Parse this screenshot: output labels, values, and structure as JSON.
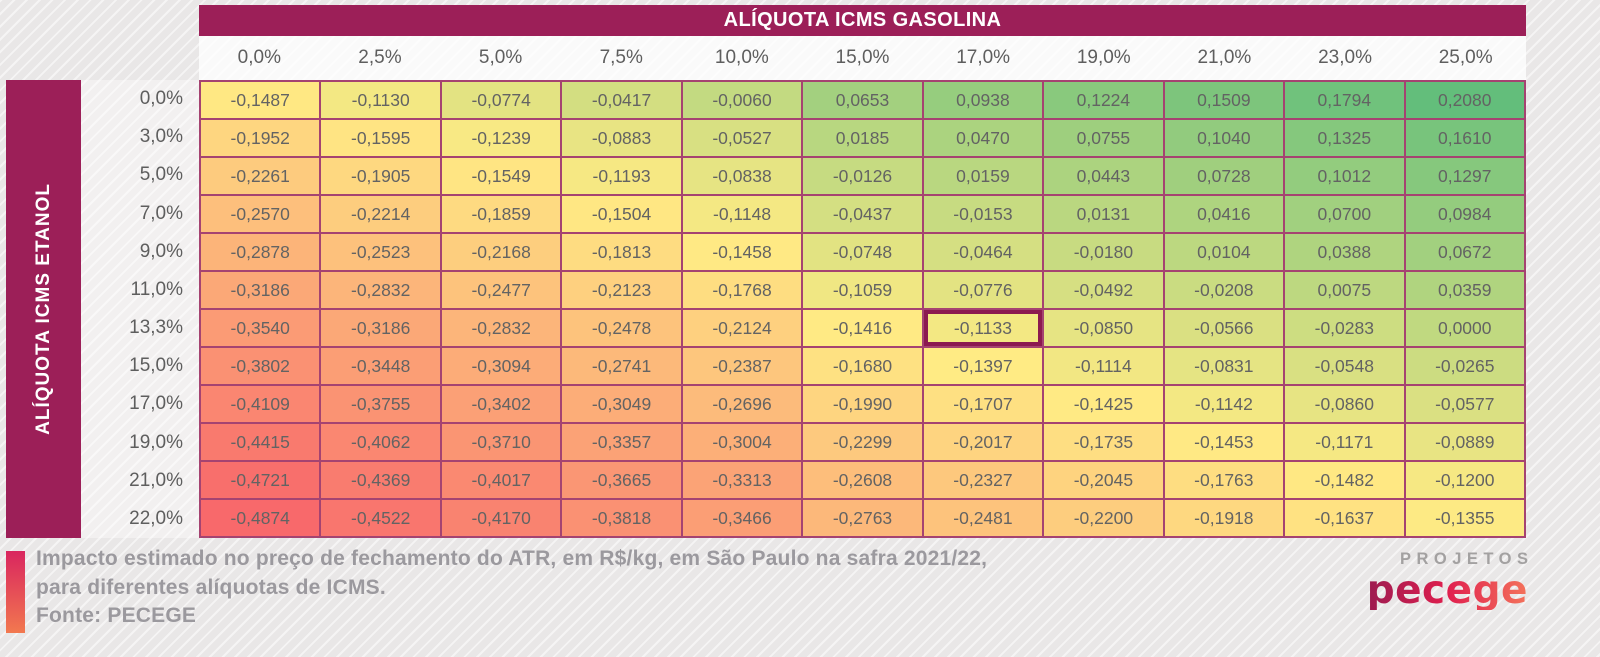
{
  "colors": {
    "page_bg": "#e9e7e7",
    "brand_magenta": "#9c1f58",
    "grid_border": "#a54371",
    "highlight_border": "#8c1a50",
    "cell_text": "#636363",
    "label_text": "#5e5e5e",
    "caption_text": "#9b999e",
    "logo_top_color": "#a3a1a1",
    "accent_bar_top": "#d9255f",
    "accent_bar_bottom": "#f2784f",
    "logo_grad_start": "#9c1b50",
    "logo_grad_mid": "#e01f4e",
    "logo_grad_end": "#f4735b"
  },
  "chart_data": {
    "type": "heatmap",
    "col_axis_title": "ALÍQUOTA ICMS GASOLINA",
    "row_axis_title": "ALÍQUOTA ICMS ETANOL",
    "col_labels": [
      "0,0%",
      "2,5%",
      "5,0%",
      "7,5%",
      "10,0%",
      "15,0%",
      "17,0%",
      "19,0%",
      "21,0%",
      "23,0%",
      "25,0%"
    ],
    "row_labels": [
      "0,0%",
      "3,0%",
      "5,0%",
      "7,0%",
      "9,0%",
      "11,0%",
      "13,3%",
      "15,0%",
      "17,0%",
      "19,0%",
      "21,0%",
      "22,0%"
    ],
    "values_display": [
      [
        "-0,1487",
        "-0,1130",
        "-0,0774",
        "-0,0417",
        "-0,0060",
        "0,0653",
        "0,0938",
        "0,1224",
        "0,1509",
        "0,1794",
        "0,2080"
      ],
      [
        "-0,1952",
        "-0,1595",
        "-0,1239",
        "-0,0883",
        "-0,0527",
        "0,0185",
        "0,0470",
        "0,0755",
        "0,1040",
        "0,1325",
        "0,1610"
      ],
      [
        "-0,2261",
        "-0,1905",
        "-0,1549",
        "-0,1193",
        "-0,0838",
        "-0,0126",
        "0,0159",
        "0,0443",
        "0,0728",
        "0,1012",
        "0,1297"
      ],
      [
        "-0,2570",
        "-0,2214",
        "-0,1859",
        "-0,1504",
        "-0,1148",
        "-0,0437",
        "-0,0153",
        "0,0131",
        "0,0416",
        "0,0700",
        "0,0984"
      ],
      [
        "-0,2878",
        "-0,2523",
        "-0,2168",
        "-0,1813",
        "-0,1458",
        "-0,0748",
        "-0,0464",
        "-0,0180",
        "0,0104",
        "0,0388",
        "0,0672"
      ],
      [
        "-0,3186",
        "-0,2832",
        "-0,2477",
        "-0,2123",
        "-0,1768",
        "-0,1059",
        "-0,0776",
        "-0,0492",
        "-0,0208",
        "0,0075",
        "0,0359"
      ],
      [
        "-0,3540",
        "-0,3186",
        "-0,2832",
        "-0,2478",
        "-0,2124",
        "-0,1416",
        "-0,1133",
        "-0,0850",
        "-0,0566",
        "-0,0283",
        "0,0000"
      ],
      [
        "-0,3802",
        "-0,3448",
        "-0,3094",
        "-0,2741",
        "-0,2387",
        "-0,1680",
        "-0,1397",
        "-0,1114",
        "-0,0831",
        "-0,0548",
        "-0,0265"
      ],
      [
        "-0,4109",
        "-0,3755",
        "-0,3402",
        "-0,3049",
        "-0,2696",
        "-0,1990",
        "-0,1707",
        "-0,1425",
        "-0,1142",
        "-0,0860",
        "-0,0577"
      ],
      [
        "-0,4415",
        "-0,4062",
        "-0,3710",
        "-0,3357",
        "-0,3004",
        "-0,2299",
        "-0,2017",
        "-0,1735",
        "-0,1453",
        "-0,1171",
        "-0,0889"
      ],
      [
        "-0,4721",
        "-0,4369",
        "-0,4017",
        "-0,3665",
        "-0,3313",
        "-0,2608",
        "-0,2327",
        "-0,2045",
        "-0,1763",
        "-0,1482",
        "-0,1200"
      ],
      [
        "-0,4874",
        "-0,4522",
        "-0,4170",
        "-0,3818",
        "-0,3466",
        "-0,2763",
        "-0,2481",
        "-0,2200",
        "-0,1918",
        "-0,1637",
        "-0,1355"
      ]
    ],
    "highlight_cell": {
      "row_index": 6,
      "col_index": 6,
      "row_label": "13,3%",
      "col_label": "17,0%",
      "value": "-0,1133"
    },
    "color_scale": {
      "min": -0.4874,
      "mid": -0.14,
      "max": 0.208,
      "min_color": "#f8696b",
      "mid_color": "#ffeb84",
      "max_color": "#63be7b"
    },
    "legend": "off",
    "grid": "on"
  },
  "footer": {
    "caption_line1": "Impacto estimado no preço de fechamento do ATR, em R$/kg, em São Paulo na safra 2021/22,",
    "caption_line2": "para diferentes alíquotas de ICMS.",
    "source": "Fonte: PECEGE",
    "logo_top": "PROJETOS",
    "logo_bottom": "pecege"
  }
}
